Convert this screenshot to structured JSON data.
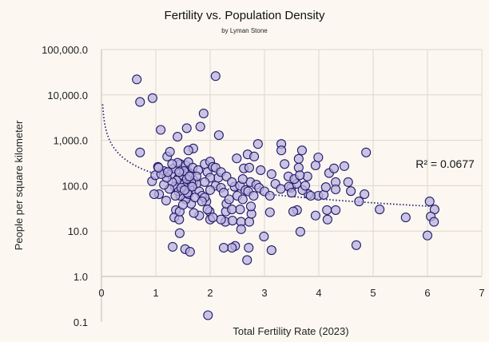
{
  "chart_data": {
    "type": "scatter",
    "title": "Fertility vs. Population Density",
    "subtitle": "by Lyman Stone",
    "xlabel": "Total Fertility Rate (2023)",
    "ylabel": "People per square kilometer",
    "xlim": [
      0,
      7
    ],
    "ylim": [
      0.1,
      100000
    ],
    "yscale": "log",
    "grid": true,
    "x_ticks": [
      "0",
      "1",
      "2",
      "3",
      "4",
      "5",
      "6",
      "7"
    ],
    "y_ticks": [
      "0.1",
      "1.0",
      "10.0",
      "100.0",
      "1,000.0",
      "10,000.0",
      "100,000.0"
    ],
    "annotation": "R² = 0.0677",
    "trendline": {
      "type": "power",
      "a": 180,
      "b": -0.905,
      "x_range": [
        0.02,
        6.1
      ]
    },
    "colors": {
      "fill": "#b9b3dc",
      "stroke": "#22196e",
      "trend": "#2a2478"
    },
    "points": [
      [
        0.65,
        22000
      ],
      [
        0.71,
        7000
      ],
      [
        0.94,
        8500
      ],
      [
        2.1,
        26000
      ],
      [
        0.71,
        540
      ],
      [
        1.09,
        1700
      ],
      [
        1.4,
        1200
      ],
      [
        1.57,
        1850
      ],
      [
        1.82,
        2000
      ],
      [
        1.88,
        3900
      ],
      [
        2.16,
        1300
      ],
      [
        1.69,
        660
      ],
      [
        1.6,
        600
      ],
      [
        0.93,
        125
      ],
      [
        1.21,
        440
      ],
      [
        1.26,
        560
      ],
      [
        1.15,
        210
      ],
      [
        1.04,
        260
      ],
      [
        0.99,
        170
      ],
      [
        1.06,
        65
      ],
      [
        0.97,
        65
      ],
      [
        1.19,
        47
      ],
      [
        1.37,
        29
      ],
      [
        1.34,
        20
      ],
      [
        1.43,
        18
      ],
      [
        1.44,
        9
      ],
      [
        1.31,
        4.5
      ],
      [
        1.54,
        4
      ],
      [
        1.63,
        3.5
      ],
      [
        1.44,
        27
      ],
      [
        1.93,
        45
      ],
      [
        1.99,
        27
      ],
      [
        2.0,
        18
      ],
      [
        1.96,
        0.14
      ],
      [
        2.1,
        100
      ],
      [
        2.29,
        27
      ],
      [
        2.28,
        16
      ],
      [
        2.41,
        17
      ],
      [
        2.46,
        4.7
      ],
      [
        2.4,
        4.3
      ],
      [
        2.25,
        4.3
      ],
      [
        2.57,
        16
      ],
      [
        2.57,
        11
      ],
      [
        2.72,
        16
      ],
      [
        2.71,
        4.3
      ],
      [
        2.68,
        2.3
      ],
      [
        2.76,
        24
      ],
      [
        2.99,
        7.6
      ],
      [
        3.13,
        3.8
      ],
      [
        3.1,
        26
      ],
      [
        3.31,
        830
      ],
      [
        3.31,
        600
      ],
      [
        2.88,
        830
      ],
      [
        2.69,
        490
      ],
      [
        2.81,
        440
      ],
      [
        2.49,
        400
      ],
      [
        2.62,
        240
      ],
      [
        2.93,
        220
      ],
      [
        2.72,
        250
      ],
      [
        2.74,
        120
      ],
      [
        3.13,
        180
      ],
      [
        3.44,
        160
      ],
      [
        3.37,
        300
      ],
      [
        3.49,
        90
      ],
      [
        3.69,
        600
      ],
      [
        3.63,
        390
      ],
      [
        3.63,
        250
      ],
      [
        3.59,
        110
      ],
      [
        3.79,
        160
      ],
      [
        3.94,
        280
      ],
      [
        3.99,
        420
      ],
      [
        3.6,
        29
      ],
      [
        3.53,
        27
      ],
      [
        3.66,
        9.7
      ],
      [
        3.94,
        22
      ],
      [
        3.81,
        65
      ],
      [
        3.99,
        60
      ],
      [
        4.09,
        63
      ],
      [
        4.13,
        93
      ],
      [
        4.15,
        29
      ],
      [
        4.16,
        18
      ],
      [
        4.19,
        190
      ],
      [
        4.28,
        240
      ],
      [
        4.31,
        120
      ],
      [
        4.47,
        270
      ],
      [
        4.54,
        120
      ],
      [
        4.59,
        76
      ],
      [
        4.31,
        29
      ],
      [
        4.31,
        83
      ],
      [
        4.69,
        4.9
      ],
      [
        4.74,
        45
      ],
      [
        4.84,
        65
      ],
      [
        4.87,
        540
      ],
      [
        5.12,
        30
      ],
      [
        5.6,
        20
      ],
      [
        6.0,
        8
      ],
      [
        6.04,
        45
      ],
      [
        6.13,
        30
      ],
      [
        6.06,
        21
      ],
      [
        6.12,
        16
      ],
      [
        1.45,
        300
      ],
      [
        1.5,
        250
      ],
      [
        1.55,
        280
      ],
      [
        1.6,
        200
      ],
      [
        1.65,
        180
      ],
      [
        1.52,
        120
      ],
      [
        1.58,
        100
      ],
      [
        1.62,
        90
      ],
      [
        1.48,
        110
      ],
      [
        1.55,
        95
      ],
      [
        1.7,
        130
      ],
      [
        1.75,
        110
      ],
      [
        1.8,
        75
      ],
      [
        1.85,
        60
      ],
      [
        1.9,
        55
      ],
      [
        1.42,
        150
      ],
      [
        1.38,
        130
      ],
      [
        1.35,
        95
      ],
      [
        1.3,
        120
      ],
      [
        1.25,
        85
      ],
      [
        1.28,
        180
      ],
      [
        1.33,
        240
      ],
      [
        1.4,
        320
      ],
      [
        1.6,
        330
      ],
      [
        1.68,
        250
      ],
      [
        1.78,
        220
      ],
      [
        1.9,
        300
      ],
      [
        1.95,
        200
      ],
      [
        2.0,
        340
      ],
      [
        2.05,
        260
      ],
      [
        2.15,
        150
      ],
      [
        2.2,
        90
      ],
      [
        2.25,
        70
      ],
      [
        2.3,
        40
      ],
      [
        2.35,
        50
      ],
      [
        2.45,
        95
      ],
      [
        2.5,
        60
      ],
      [
        2.55,
        100
      ],
      [
        2.6,
        140
      ],
      [
        2.65,
        80
      ],
      [
        2.7,
        75
      ],
      [
        2.75,
        35
      ],
      [
        2.55,
        30
      ],
      [
        2.4,
        30
      ],
      [
        2.2,
        18
      ],
      [
        2.05,
        20
      ],
      [
        1.95,
        30
      ],
      [
        1.8,
        22
      ],
      [
        1.7,
        25
      ],
      [
        1.65,
        40
      ],
      [
        1.55,
        50
      ],
      [
        1.5,
        38
      ],
      [
        1.45,
        60
      ],
      [
        1.42,
        75
      ],
      [
        1.6,
        65
      ],
      [
        1.72,
        55
      ],
      [
        1.85,
        45
      ],
      [
        1.15,
        105
      ],
      [
        1.2,
        150
      ],
      [
        1.1,
        180
      ],
      [
        1.05,
        250
      ],
      [
        1.22,
        200
      ],
      [
        1.3,
        300
      ],
      [
        2.0,
        150
      ],
      [
        2.1,
        250
      ],
      [
        2.2,
        200
      ],
      [
        2.3,
        160
      ],
      [
        2.4,
        120
      ],
      [
        2.85,
        105
      ],
      [
        2.9,
        90
      ],
      [
        3.0,
        75
      ],
      [
        3.1,
        60
      ],
      [
        3.2,
        110
      ],
      [
        3.3,
        85
      ],
      [
        3.45,
        95
      ],
      [
        3.5,
        70
      ],
      [
        3.55,
        140
      ],
      [
        3.65,
        170
      ],
      [
        3.7,
        80
      ],
      [
        3.75,
        100
      ],
      [
        3.85,
        60
      ],
      [
        2.8,
        60
      ],
      [
        2.6,
        50
      ],
      [
        2.0,
        80
      ],
      [
        1.9,
        120
      ],
      [
        1.75,
        160
      ],
      [
        1.5,
        170
      ],
      [
        1.65,
        120
      ],
      [
        1.58,
        70
      ],
      [
        1.52,
        210
      ],
      [
        1.47,
        90
      ],
      [
        1.57,
        140
      ],
      [
        1.62,
        160
      ],
      [
        1.53,
        80
      ],
      [
        1.67,
        95
      ],
      [
        1.43,
        200
      ],
      [
        1.36,
        60
      ]
    ]
  }
}
